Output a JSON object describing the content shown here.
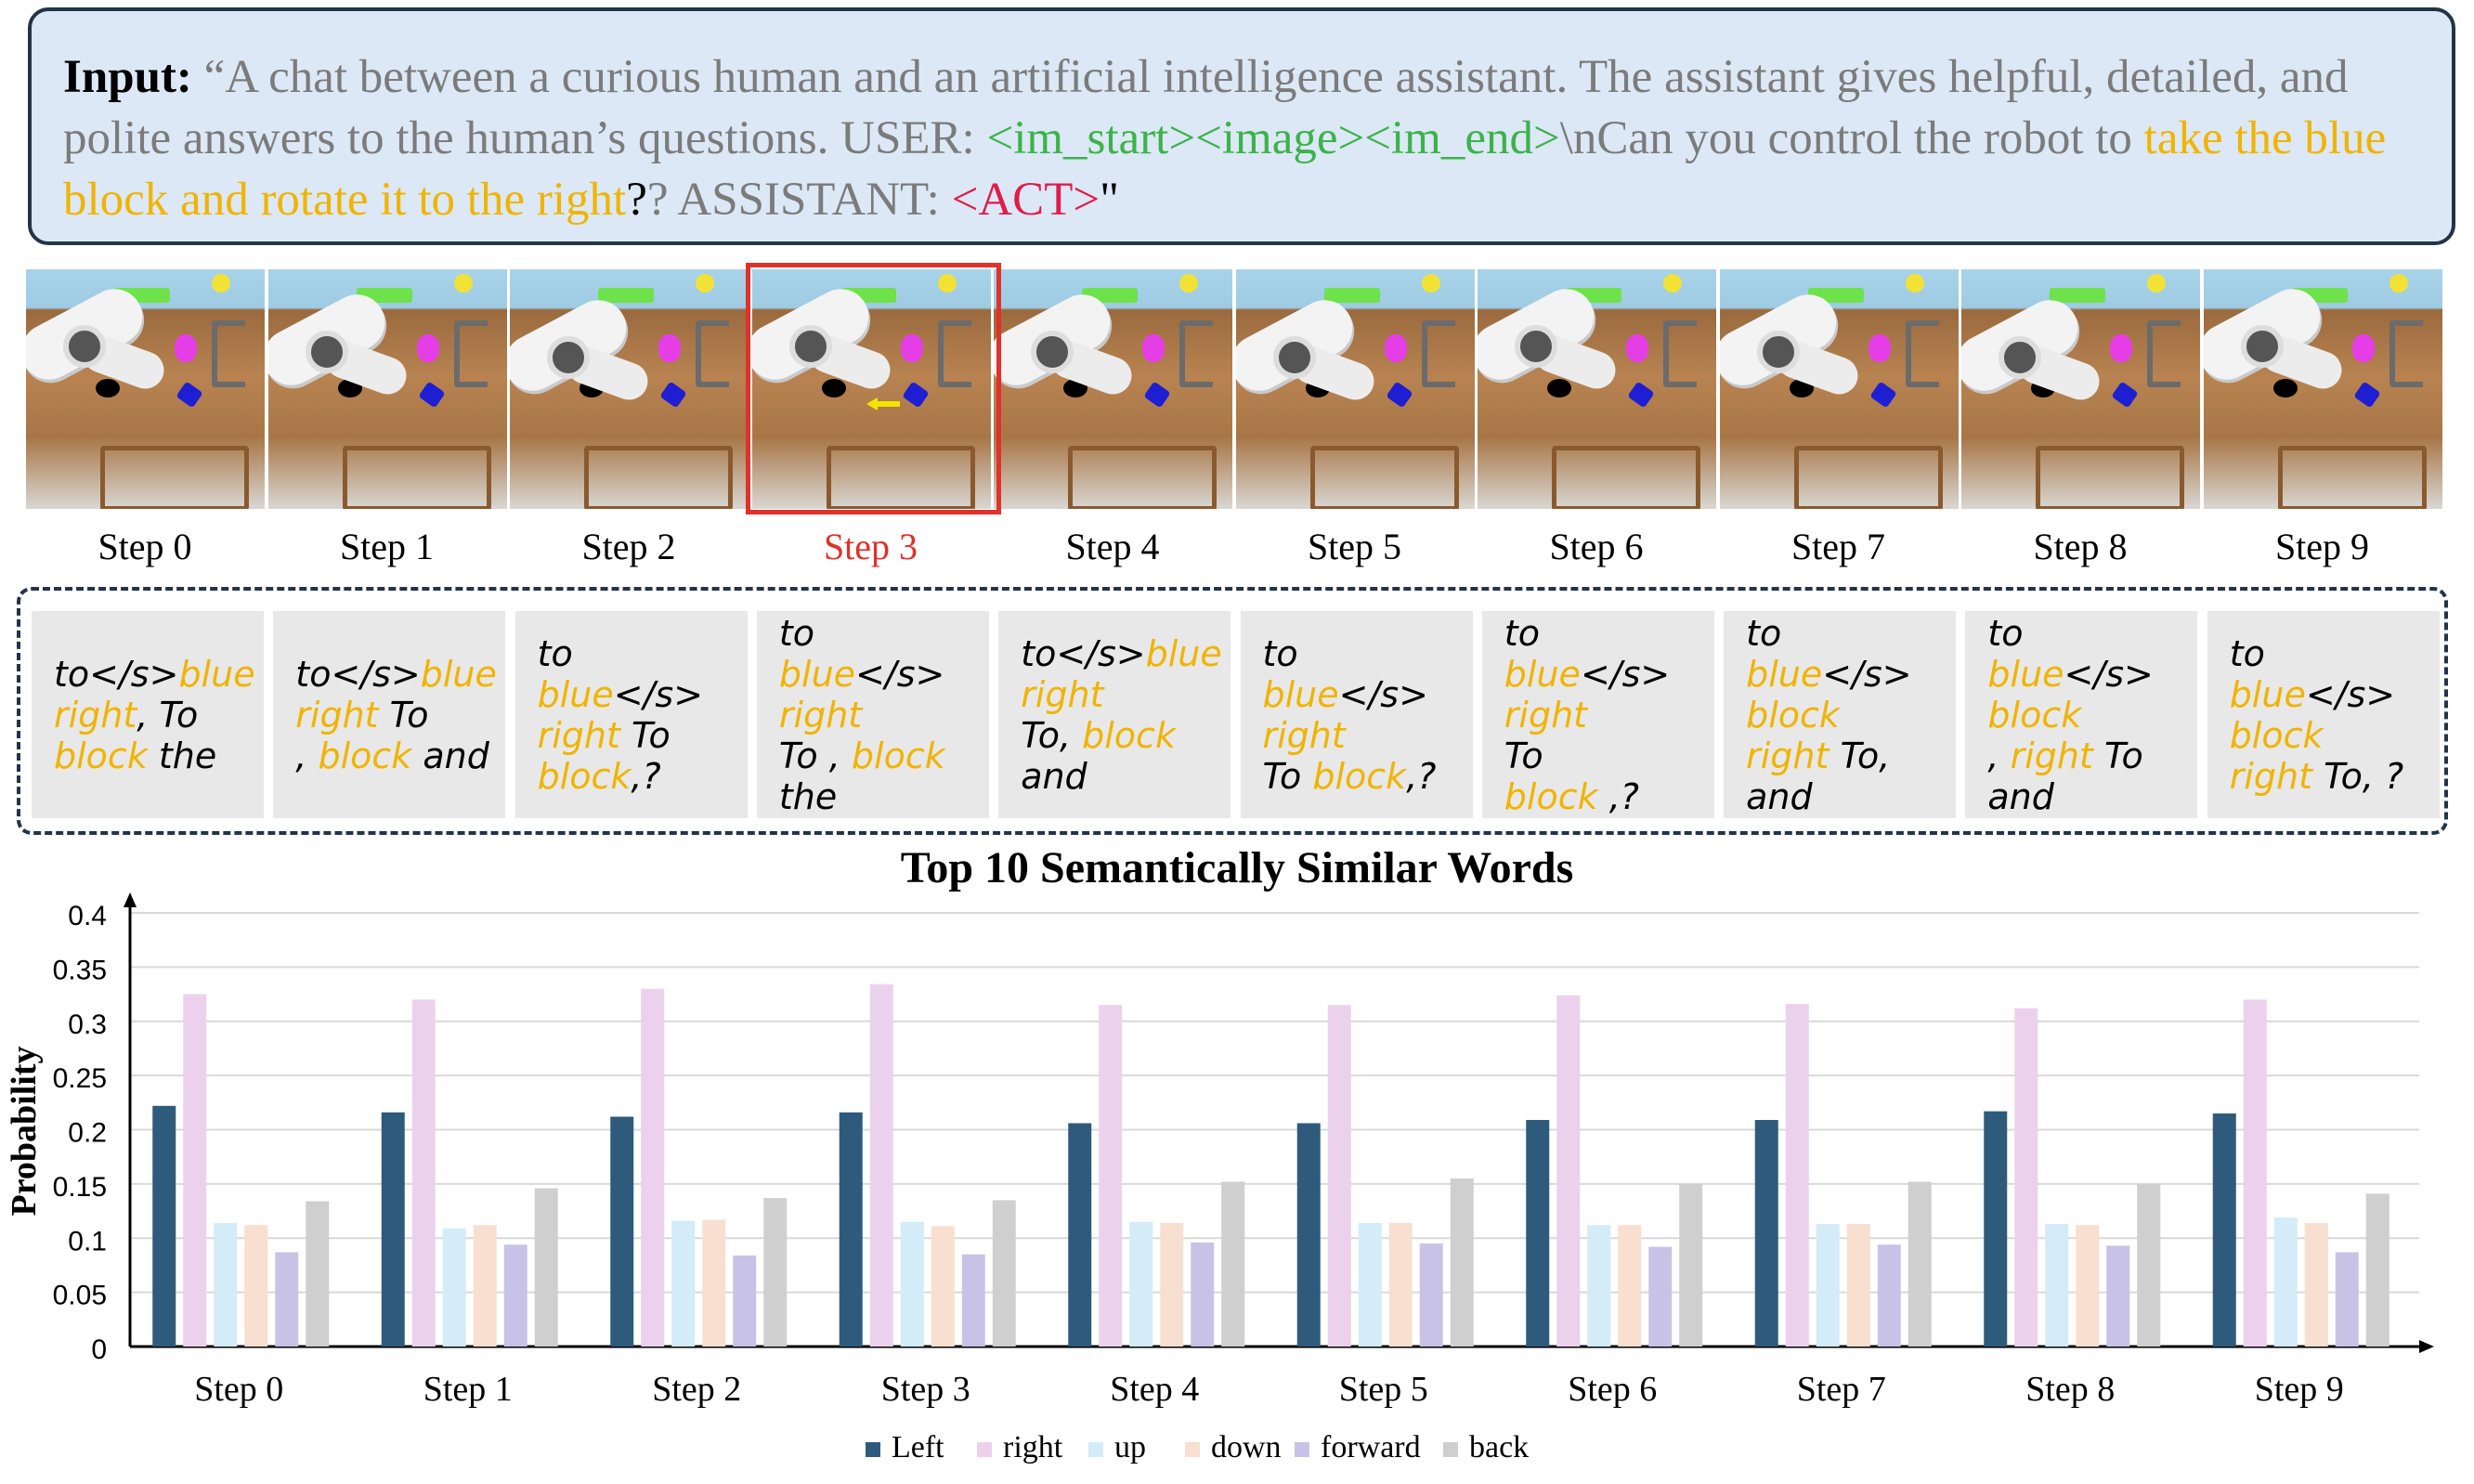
{
  "prompt": {
    "label": "Input:",
    "open_quote": " “",
    "text1": "A chat between a curious human and an artificial intelligence assistant. The assistant gives helpful, detailed, and polite answers to the human’s questions. USER: ",
    "tokens": "<im_start><image><im_end>",
    "text2": "\\nCan you control the robot to ",
    "instruction": "take the blue block and rotate it to the right",
    "text3": "? ASSISTANT: ",
    "act_token": "<ACT>",
    "close_quote": "\""
  },
  "colors": {
    "highlight_red": "#e0312a",
    "token_green": "#3bb34a",
    "instruction_yellow": "#f0b400",
    "act_red": "#e01c4b",
    "box_fill": "#dce8f5",
    "box_border": "#233447"
  },
  "frames": {
    "highlighted_step": 3,
    "labels": [
      "Step 0",
      "Step 1",
      "Step 2",
      "Step 3",
      "Step 4",
      "Step 5",
      "Step 6",
      "Step 7",
      "Step 8",
      "Step 9"
    ]
  },
  "word_cards": [
    [
      [
        [
          "to</s>",
          "b"
        ],
        [
          "blue",
          "y"
        ]
      ],
      [
        [
          "right",
          "y"
        ],
        [
          ", To",
          "b"
        ]
      ],
      [
        [
          "block",
          "y"
        ],
        [
          " the",
          "b"
        ]
      ]
    ],
    [
      [
        [
          "to</s>",
          "b"
        ],
        [
          "blue",
          "y"
        ]
      ],
      [
        [
          "right",
          "y"
        ],
        [
          " To",
          "b"
        ]
      ],
      [
        [
          ", ",
          "b"
        ],
        [
          "block",
          "y"
        ],
        [
          " and",
          "b"
        ]
      ]
    ],
    [
      [
        [
          "to ",
          "b"
        ],
        [
          "blue",
          "y"
        ],
        [
          "</s>",
          "b"
        ]
      ],
      [
        [
          "right",
          "y"
        ],
        [
          " To",
          "b"
        ]
      ],
      [
        [
          "block",
          "y"
        ],
        [
          ",?",
          "b"
        ]
      ]
    ],
    [
      [
        [
          "to",
          "b"
        ]
      ],
      [
        [
          "blue",
          "y"
        ],
        [
          "</s>",
          "b"
        ]
      ],
      [
        [
          "right",
          "y"
        ]
      ],
      [
        [
          "To , ",
          "b"
        ],
        [
          "block",
          "y"
        ]
      ],
      [
        [
          "the",
          "b"
        ]
      ]
    ],
    [
      [
        [
          "to</s>",
          "b"
        ],
        [
          "blue",
          "y"
        ]
      ],
      [
        [
          "right",
          "y"
        ]
      ],
      [
        [
          "To, ",
          "b"
        ],
        [
          "block",
          "y"
        ]
      ],
      [
        [
          "and",
          "b"
        ]
      ]
    ],
    [
      [
        [
          "to",
          "b"
        ]
      ],
      [
        [
          "blue",
          "y"
        ],
        [
          "</s>",
          "b"
        ]
      ],
      [
        [
          "right",
          "y"
        ]
      ],
      [
        [
          "To ",
          "b"
        ],
        [
          "block",
          "y"
        ],
        [
          ",?",
          "b"
        ]
      ]
    ],
    [
      [
        [
          "to",
          "b"
        ]
      ],
      [
        [
          "blue",
          "y"
        ],
        [
          "</s>",
          "b"
        ]
      ],
      [
        [
          "right",
          "y"
        ]
      ],
      [
        [
          "To",
          "b"
        ]
      ],
      [
        [
          "block",
          "y"
        ],
        [
          " ,?",
          "b"
        ]
      ]
    ],
    [
      [
        [
          "to",
          "b"
        ]
      ],
      [
        [
          "blue",
          "y"
        ],
        [
          "</s>",
          "b"
        ]
      ],
      [
        [
          "block",
          "y"
        ]
      ],
      [
        [
          "right",
          "y"
        ],
        [
          " To,",
          "b"
        ]
      ],
      [
        [
          "and",
          "b"
        ]
      ]
    ],
    [
      [
        [
          "to",
          "b"
        ]
      ],
      [
        [
          "blue",
          "y"
        ],
        [
          "</s>",
          "b"
        ]
      ],
      [
        [
          "block",
          "y"
        ]
      ],
      [
        [
          ", ",
          "b"
        ],
        [
          "right",
          "y"
        ],
        [
          " To",
          "b"
        ]
      ],
      [
        [
          "and",
          "b"
        ]
      ]
    ],
    [
      [
        [
          "to",
          "b"
        ]
      ],
      [
        [
          "blue",
          "y"
        ],
        [
          "</s>",
          "b"
        ]
      ],
      [
        [
          "block",
          "y"
        ]
      ],
      [
        [
          "right",
          "y"
        ],
        [
          " To, ?",
          "b"
        ]
      ]
    ]
  ],
  "chart_data": {
    "type": "bar",
    "title": "Top 10 Semantically Similar Words",
    "xlabel": "",
    "ylabel": "Probability",
    "ylim": [
      0,
      0.4
    ],
    "yticks": [
      "0",
      "0.05",
      "0.1",
      "0.15",
      "0.2",
      "0.25",
      "0.3",
      "0.35",
      "0.4"
    ],
    "grid": true,
    "legend_position": "bottom-center",
    "categories": [
      "Step 0",
      "Step 1",
      "Step 2",
      "Step 3",
      "Step 4",
      "Step 5",
      "Step 6",
      "Step 7",
      "Step 8",
      "Step 9"
    ],
    "series": [
      {
        "name": "Left",
        "color": "#2e5b7c",
        "values": [
          0.222,
          0.216,
          0.212,
          0.216,
          0.206,
          0.206,
          0.209,
          0.209,
          0.217,
          0.215
        ]
      },
      {
        "name": "right",
        "color": "#ecd1ec",
        "values": [
          0.325,
          0.32,
          0.33,
          0.334,
          0.315,
          0.315,
          0.324,
          0.316,
          0.312,
          0.32
        ]
      },
      {
        "name": "up",
        "color": "#d3ecf8",
        "values": [
          0.114,
          0.109,
          0.116,
          0.115,
          0.115,
          0.114,
          0.112,
          0.113,
          0.113,
          0.119
        ]
      },
      {
        "name": "down",
        "color": "#f8dfd0",
        "values": [
          0.112,
          0.112,
          0.117,
          0.111,
          0.114,
          0.114,
          0.112,
          0.113,
          0.112,
          0.114
        ]
      },
      {
        "name": "forward",
        "color": "#c8c3e6",
        "values": [
          0.087,
          0.094,
          0.084,
          0.085,
          0.096,
          0.095,
          0.092,
          0.094,
          0.093,
          0.087
        ]
      },
      {
        "name": "back",
        "color": "#cfcfcf",
        "values": [
          0.134,
          0.146,
          0.137,
          0.135,
          0.152,
          0.155,
          0.15,
          0.152,
          0.15,
          0.141
        ]
      }
    ]
  }
}
